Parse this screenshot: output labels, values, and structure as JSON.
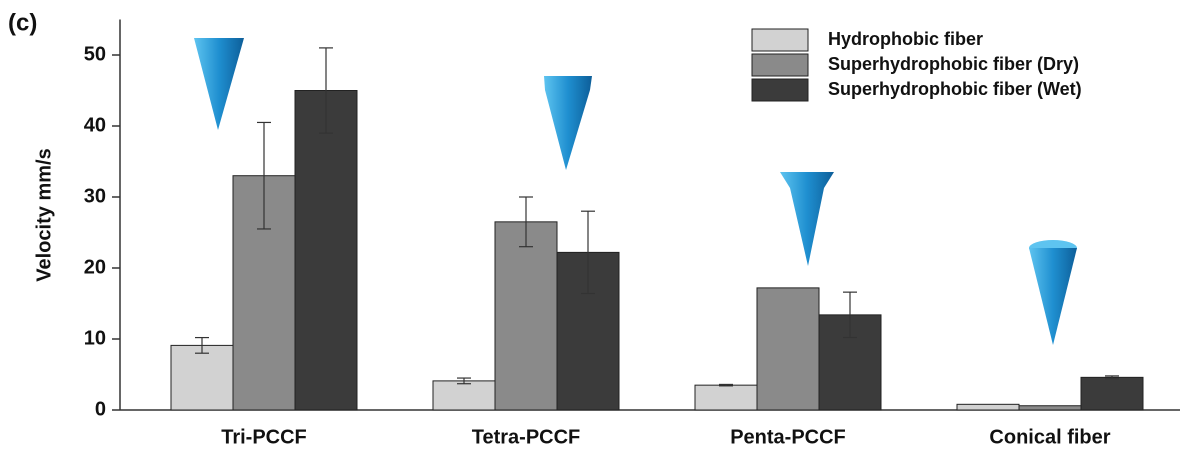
{
  "chart_data": {
    "type": "bar",
    "panel_label": "(c)",
    "y_label": "Velocity mm/s",
    "categories": [
      "Tri-PCCF",
      "Tetra-PCCF",
      "Penta-PCCF",
      "Conical fiber"
    ],
    "series": [
      {
        "name": "Hydrophobic fiber",
        "color": "#d2d2d2",
        "values": [
          9.1,
          4.1,
          3.5,
          0.8
        ],
        "errors": [
          1.1,
          0.4,
          0.1,
          null
        ]
      },
      {
        "name": "Superhydrophobic fiber (Dry)",
        "color": "#8a8a8a",
        "values": [
          33,
          26.5,
          17.2,
          0.6
        ],
        "errors": [
          7.5,
          3.5,
          null,
          null
        ]
      },
      {
        "name": "Superhydrophobic fiber (Wet)",
        "color": "#3b3b3b",
        "values": [
          45,
          22.2,
          13.4,
          4.6
        ],
        "errors": [
          6,
          5.8,
          3.2,
          0.2
        ]
      }
    ],
    "ylim": [
      0,
      55
    ],
    "yticks": [
      0,
      10,
      20,
      30,
      40,
      50
    ],
    "legend": "top-right"
  }
}
